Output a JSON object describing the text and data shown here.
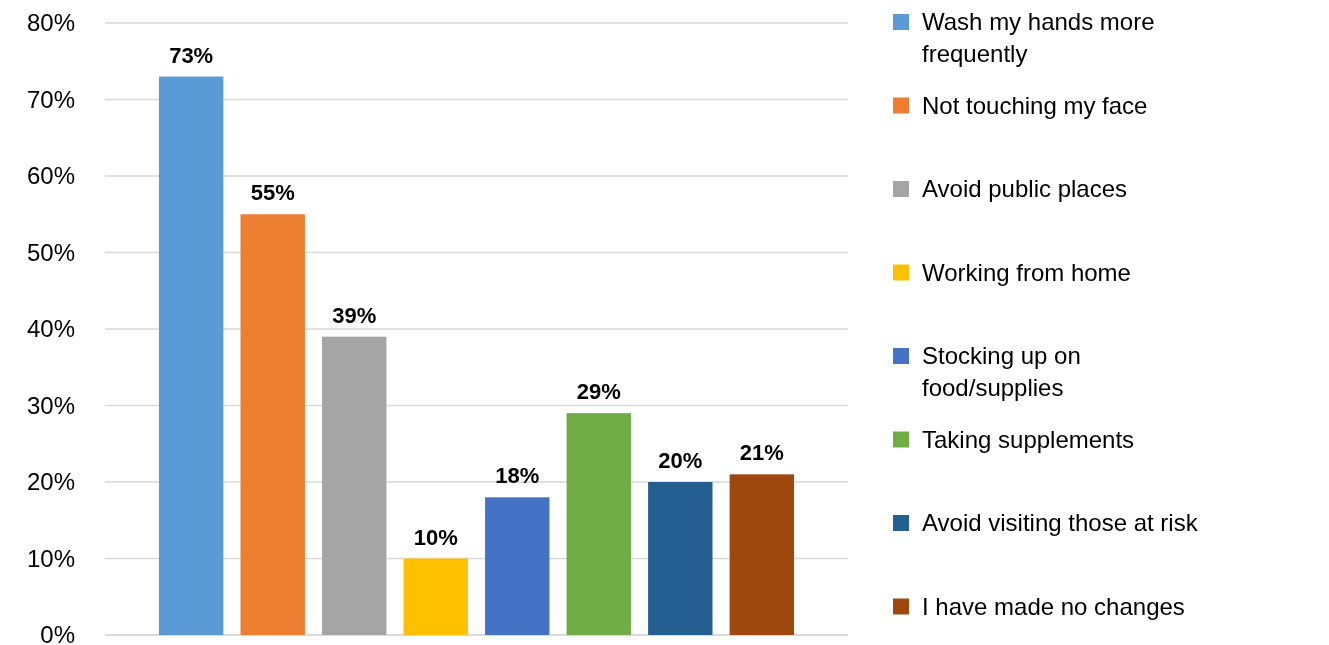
{
  "chart_data": {
    "type": "bar",
    "categories": [
      null
    ],
    "series": [
      {
        "name": "Wash my hands more frequently",
        "color": "#5b9bd5",
        "values": [
          73
        ],
        "value_labels": [
          "73%"
        ]
      },
      {
        "name": "Not touching my face",
        "color": "#ed7d31",
        "values": [
          55
        ],
        "value_labels": [
          "55%"
        ]
      },
      {
        "name": "Avoid public places",
        "color": "#a5a5a5",
        "values": [
          39
        ],
        "value_labels": [
          "39%"
        ]
      },
      {
        "name": "Working from home",
        "color": "#ffc000",
        "values": [
          10
        ],
        "value_labels": [
          "10%"
        ]
      },
      {
        "name": "Stocking up on food/supplies",
        "color": "#4472c4",
        "values": [
          18
        ],
        "value_labels": [
          "18%"
        ]
      },
      {
        "name": "Taking supplements",
        "color": "#70ad47",
        "values": [
          29
        ],
        "value_labels": [
          "29%"
        ]
      },
      {
        "name": "Avoid visiting those at risk",
        "color": "#255e91",
        "values": [
          20
        ],
        "value_labels": [
          "20%"
        ]
      },
      {
        "name": "I have made no changes",
        "color": "#9e480e",
        "values": [
          21
        ],
        "value_labels": [
          "21%"
        ]
      }
    ],
    "ylim": [
      0,
      80
    ],
    "yticks": [
      {
        "value": 0,
        "label": "0%"
      },
      {
        "value": 10,
        "label": "10%"
      },
      {
        "value": 20,
        "label": "20%"
      },
      {
        "value": 30,
        "label": "30%"
      },
      {
        "value": 40,
        "label": "40%"
      },
      {
        "value": 50,
        "label": "50%"
      },
      {
        "value": 60,
        "label": "60%"
      },
      {
        "value": 70,
        "label": "70%"
      },
      {
        "value": 80,
        "label": "80%"
      }
    ],
    "grid": "y",
    "legend": "right"
  }
}
